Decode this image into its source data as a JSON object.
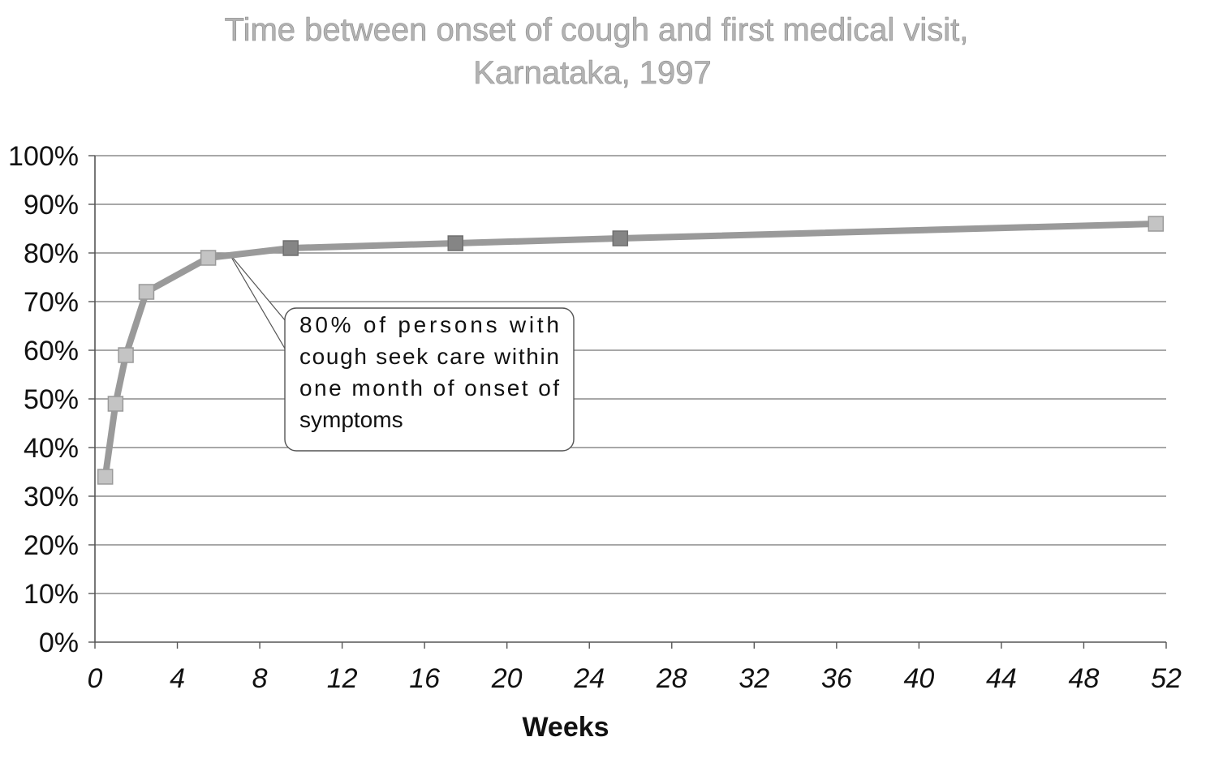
{
  "chart_data": {
    "type": "line",
    "title": "Time between onset of cough and first medical visit,",
    "subtitle": "Karnataka, 1997",
    "xlabel": "Weeks",
    "ylabel": "",
    "xlim": [
      0,
      52
    ],
    "ylim": [
      0,
      100
    ],
    "x_ticks": [
      "0",
      "4",
      "8",
      "12",
      "16",
      "20",
      "24",
      "28",
      "32",
      "36",
      "40",
      "44",
      "48",
      "52"
    ],
    "y_ticks": [
      "0%",
      "10%",
      "20%",
      "30%",
      "40%",
      "50%",
      "60%",
      "70%",
      "80%",
      "90%",
      "100%"
    ],
    "grid": true,
    "series": [
      {
        "x": [
          0.5,
          1,
          1.5,
          2.5,
          5.5,
          9.5,
          17.5,
          25.5,
          51.5
        ],
        "values": [
          34,
          49,
          59,
          72,
          79,
          81,
          82,
          83,
          86
        ]
      }
    ],
    "annotations": [
      {
        "lines": [
          "80% of persons with",
          "cough seek care within",
          "one month of onset of",
          "symptoms"
        ],
        "points_to": {
          "x": 6.5,
          "y": 80
        }
      }
    ],
    "colors": {
      "line": "#9a9a9a",
      "marker_light": "#c4c4c4",
      "marker_dark": "#858585",
      "grid": "#8c8c8c",
      "axis": "#555555"
    }
  }
}
